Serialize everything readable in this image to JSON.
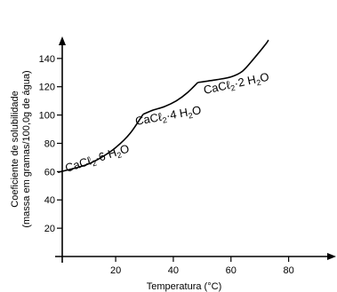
{
  "chart_data": {
    "type": "line",
    "xlabel": "Temperatura (°C)",
    "ylabel_line1": "Coeficiente de solubilidade",
    "ylabel_line2": "(massa em gramas/100,0g de água)",
    "xlim": [
      -1,
      94
    ],
    "ylim": [
      0,
      165
    ],
    "x_ticks": [
      20,
      40,
      60,
      80
    ],
    "y_ticks": [
      20,
      40,
      60,
      80,
      100,
      120,
      140
    ],
    "series": [
      {
        "label_prefix": "CaCℓ",
        "label_sub": "2",
        "label_mid": "·6 H",
        "label_sub2": "2",
        "label_end": "O",
        "points": [
          [
            0,
            59.5
          ],
          [
            5,
            62
          ],
          [
            10,
            65
          ],
          [
            15,
            70
          ],
          [
            20,
            77
          ],
          [
            25,
            87
          ],
          [
            29.5,
            100.5
          ]
        ]
      },
      {
        "label_prefix": "CaCℓ",
        "label_sub": "2",
        "label_mid": "·4 H",
        "label_sub2": "2",
        "label_end": "O",
        "points": [
          [
            29.5,
            100.5
          ],
          [
            33,
            103.5
          ],
          [
            37,
            106
          ],
          [
            41,
            110
          ],
          [
            45,
            116
          ],
          [
            48.5,
            123
          ]
        ]
      },
      {
        "label_prefix": "CaCℓ",
        "label_sub": "2",
        "label_mid": "·2 H",
        "label_sub2": "2",
        "label_end": "O",
        "points": [
          [
            48.5,
            123
          ],
          [
            55,
            125
          ],
          [
            60,
            127
          ],
          [
            64,
            131
          ],
          [
            68,
            140
          ],
          [
            72,
            150
          ],
          [
            73,
            153
          ]
        ]
      }
    ]
  }
}
